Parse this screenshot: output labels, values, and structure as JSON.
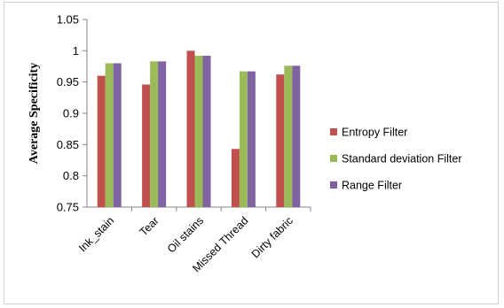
{
  "chart_data": {
    "type": "bar",
    "title": "",
    "xlabel": "",
    "ylabel": "Average Specificity",
    "ylim": [
      0.75,
      1.05
    ],
    "yticks": [
      "0.75",
      "0.8",
      "0.85",
      "0.9",
      "0.95",
      "1",
      "1.05"
    ],
    "categories": [
      "Ink_stain",
      "Tear",
      "Oil stains",
      "Missed Thread",
      "Dirty fabric"
    ],
    "series": [
      {
        "name": "Entropy Filter",
        "color": "#c0504d",
        "values": [
          0.96,
          0.946,
          1.0,
          0.843,
          0.962
        ]
      },
      {
        "name": "Standard deviation Filter",
        "color": "#9bbb59",
        "values": [
          0.98,
          0.983,
          0.992,
          0.967,
          0.976
        ]
      },
      {
        "name": "Range Filter",
        "color": "#8064a2",
        "values": [
          0.98,
          0.983,
          0.992,
          0.967,
          0.976
        ]
      }
    ],
    "grid": false,
    "legend_position": "right"
  }
}
